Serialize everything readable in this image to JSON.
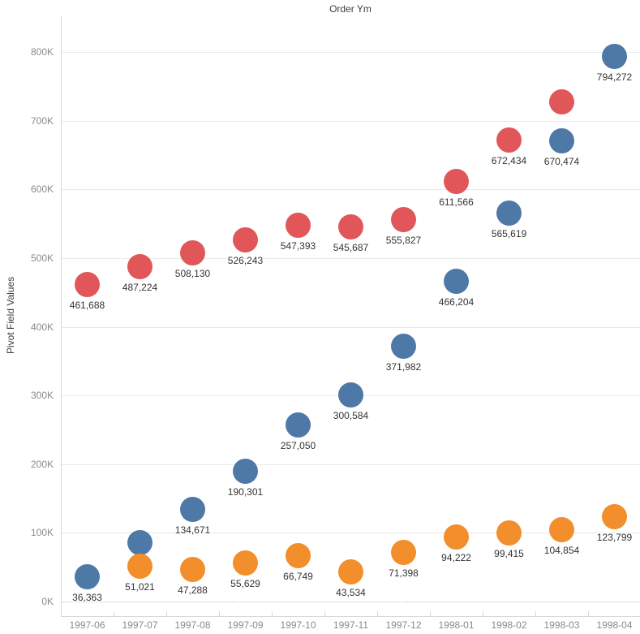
{
  "chart_data": {
    "type": "scatter",
    "title": "Order Ym",
    "xlabel": "",
    "ylabel": "Pivot Field Values",
    "grid": true,
    "legend": "none",
    "ylim": [
      0,
      850000
    ],
    "y_tick_step": 100000,
    "y_ticks": [
      "0K",
      "100K",
      "200K",
      "300K",
      "400K",
      "500K",
      "600K",
      "700K",
      "800K"
    ],
    "categories": [
      "1997-06",
      "1997-07",
      "1997-08",
      "1997-09",
      "1997-10",
      "1997-11",
      "1997-12",
      "1998-01",
      "1998-02",
      "1998-03",
      "1998-04"
    ],
    "series": [
      {
        "name": "series-blue",
        "color": "#4e79a7",
        "values": [
          36363,
          86000,
          134671,
          190301,
          257050,
          300584,
          371982,
          466204,
          565619,
          670474,
          794272
        ],
        "labels": [
          "36,363",
          null,
          "134,671",
          "190,301",
          "257,050",
          "300,584",
          "371,982",
          "466,204",
          "565,619",
          "670,474",
          "794,272"
        ]
      },
      {
        "name": "series-red",
        "color": "#e15759",
        "values": [
          461688,
          487224,
          508130,
          526243,
          547393,
          545687,
          555827,
          611566,
          672434,
          728000,
          null
        ],
        "labels": [
          "461,688",
          "487,224",
          "508,130",
          "526,243",
          "547,393",
          "545,687",
          "555,827",
          "611,566",
          "672,434",
          null,
          null
        ]
      },
      {
        "name": "series-orange",
        "color": "#f28e2b",
        "values": [
          null,
          51021,
          47288,
          55629,
          66749,
          43534,
          71398,
          94222,
          99415,
          104854,
          123799
        ],
        "labels": [
          null,
          "51,021",
          "47,288",
          "55,629",
          "66,749",
          "43,534",
          "71,398",
          "94,222",
          "99,415",
          "104,854",
          "123,799"
        ]
      }
    ]
  }
}
